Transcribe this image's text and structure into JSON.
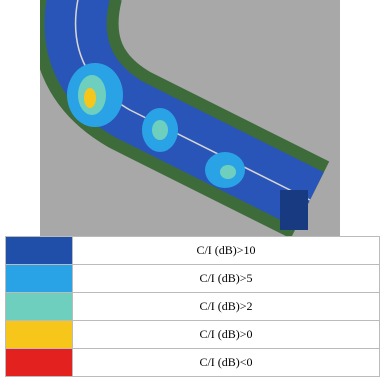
{
  "legend": [
    {
      "label": "C/I (dB)>10",
      "color": "#1f4fa8"
    },
    {
      "label": "C/I (dB)>5",
      "color": "#2aa3e6"
    },
    {
      "label": "C/I (dB)>2",
      "color": "#6fcfbf"
    },
    {
      "label": "C/I (dB)>0",
      "color": "#f6c61b"
    },
    {
      "label": "C/I (dB)<0",
      "color": "#e3221f"
    }
  ]
}
